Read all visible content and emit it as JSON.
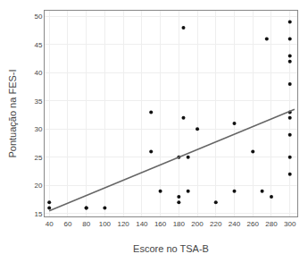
{
  "chart_data": {
    "type": "scatter",
    "xlabel": "Escore no TSA-B",
    "ylabel": "Pontuação na FES-I",
    "series": [
      {
        "type": "scatter",
        "color": "#111111",
        "x": [
          40,
          40,
          80,
          80,
          100,
          150,
          150,
          160,
          180,
          180,
          180,
          185,
          185,
          190,
          190,
          200,
          220,
          240,
          240,
          260,
          270,
          275,
          280,
          300,
          300,
          300,
          300,
          300,
          300,
          300,
          300,
          300,
          300
        ],
        "values": [
          17,
          16,
          16,
          16,
          16,
          33,
          26,
          19,
          25,
          18,
          17,
          48,
          32,
          25,
          19,
          30,
          17,
          31,
          19,
          26,
          19,
          46,
          18,
          49,
          46,
          43,
          42,
          38,
          33,
          32,
          29,
          25,
          22
        ]
      },
      {
        "type": "line",
        "color": "#666666",
        "x": [
          40,
          305
        ],
        "values": [
          15.5,
          33.5
        ]
      }
    ],
    "xlim": [
      35,
      308
    ],
    "ylim": [
      14.5,
      51
    ],
    "xticks": [
      40,
      60,
      80,
      100,
      120,
      140,
      160,
      180,
      200,
      220,
      240,
      260,
      280,
      300
    ],
    "yticks": [
      15,
      20,
      25,
      30,
      35,
      40,
      45,
      50
    ],
    "grid": true
  }
}
